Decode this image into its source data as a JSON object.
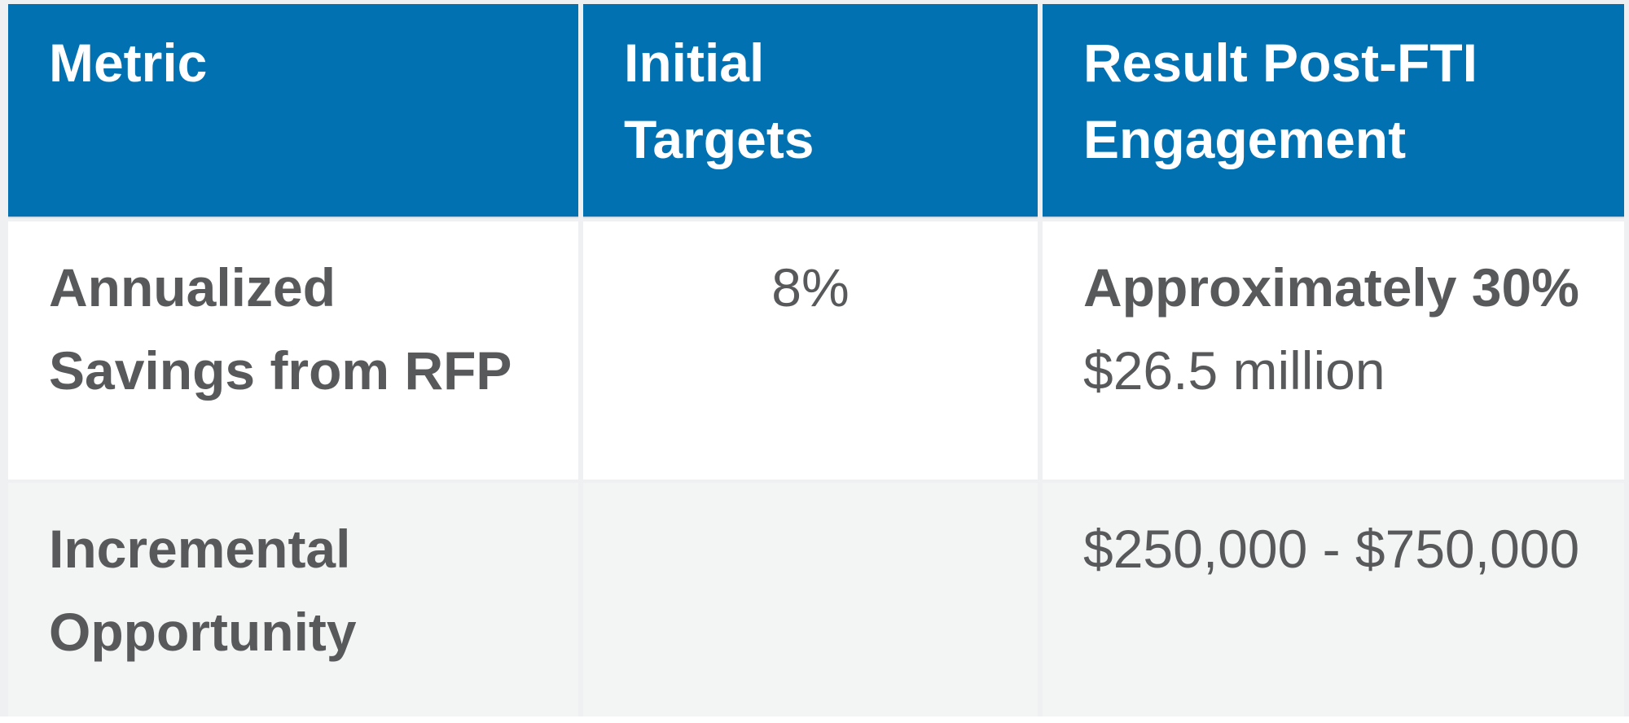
{
  "table": {
    "header": {
      "cells": [
        {
          "lines": [
            "Metric"
          ]
        },
        {
          "lines": [
            "Initial",
            "Targets"
          ]
        },
        {
          "lines": [
            "Result Post-FTI",
            "Engagement"
          ]
        }
      ]
    },
    "rows": [
      {
        "metric_lines": [
          "Annualized",
          "Savings from RFP"
        ],
        "initial_target": "8%",
        "result_line1": "Approximately 30%",
        "result_line2": "$26.5 million"
      },
      {
        "metric_lines": [
          "Incremental",
          "Opportunity"
        ],
        "initial_target": "",
        "result_line1": "$250,000 - $750,000",
        "result_line2": ""
      }
    ],
    "colors": {
      "header_bg": "#0271b2",
      "header_text": "#ffffff",
      "body_text": "#58595b",
      "row_bg": "#ffffff",
      "row_alt_bg": "#f3f4f4",
      "page_margin": "#eef0f1",
      "header_underline": "#cfdde8"
    }
  }
}
